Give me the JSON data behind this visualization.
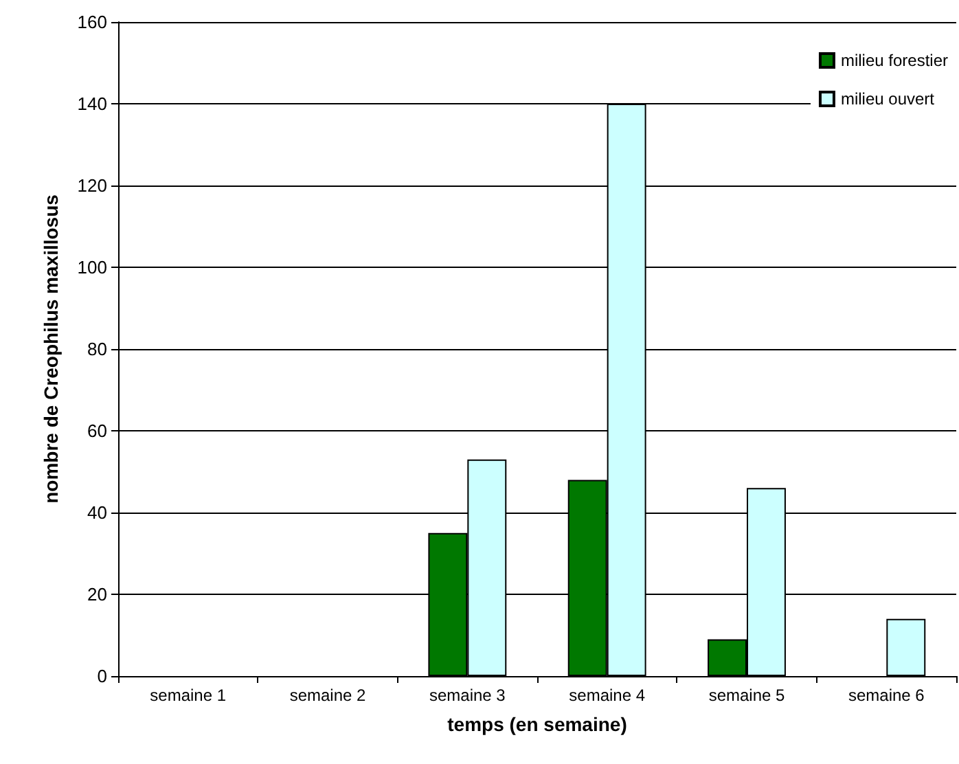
{
  "chart_data": {
    "type": "bar",
    "xlabel": "temps (en semaine)",
    "ylabel": "nombre de Creophilus maxillosus",
    "categories": [
      "semaine 1",
      "semaine 2",
      "semaine 3",
      "semaine 4",
      "semaine 5",
      "semaine 6"
    ],
    "series": [
      {
        "name": "milieu forestier",
        "color": "#007800",
        "values": [
          0,
          0,
          35,
          48,
          9,
          0
        ]
      },
      {
        "name": "milieu ouvert",
        "color": "#ccffff",
        "values": [
          0,
          0,
          53,
          140,
          46,
          14
        ]
      }
    ],
    "ylim": [
      0,
      160
    ],
    "yticks": [
      0,
      20,
      40,
      60,
      80,
      100,
      120,
      140,
      160
    ],
    "grid": "y",
    "legend": "top right"
  }
}
